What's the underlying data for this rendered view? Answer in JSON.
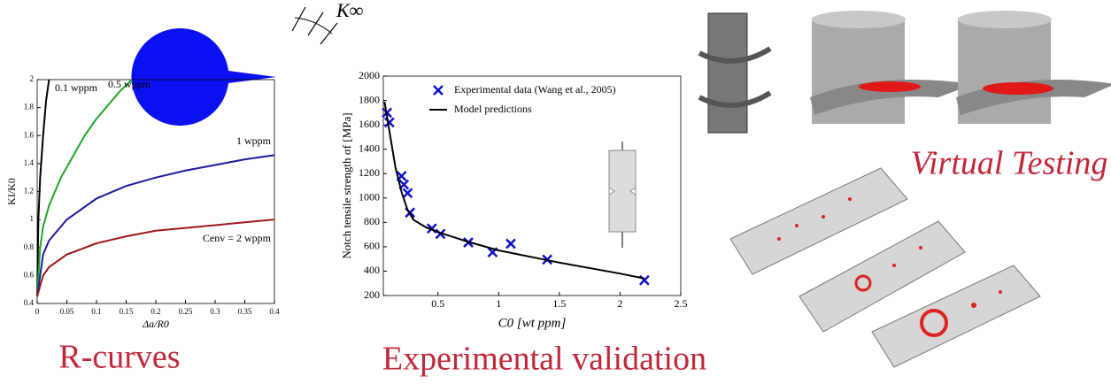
{
  "chart_data": [
    {
      "type": "line",
      "x_label": "Δa/R0",
      "y_label": "KI/K0",
      "xlim": [
        0,
        0.4
      ],
      "ylim": [
        0.4,
        2
      ],
      "xticks": [
        0,
        0.05,
        0.1,
        0.15,
        0.2,
        0.25,
        0.3,
        0.35,
        0.4
      ],
      "yticks": [
        0.4,
        0.6,
        0.8,
        1,
        1.2,
        1.4,
        1.6,
        1.8,
        2
      ],
      "series": [
        {
          "name": "0.1 wppm",
          "color": "#000000",
          "x": [
            0,
            0.002,
            0.005,
            0.01,
            0.015,
            0.02
          ],
          "values": [
            0.45,
            1.0,
            1.3,
            1.6,
            1.85,
            2
          ]
        },
        {
          "name": "0.5 wppm",
          "color": "#1fa52a",
          "x": [
            0,
            0.005,
            0.01,
            0.02,
            0.04,
            0.06,
            0.08,
            0.1,
            0.12,
            0.14,
            0.16
          ],
          "values": [
            0.45,
            0.8,
            0.95,
            1.1,
            1.3,
            1.45,
            1.6,
            1.72,
            1.82,
            1.92,
            2.0
          ]
        },
        {
          "name": "1 wppm",
          "color": "#1a1aa0",
          "x": [
            0,
            0.01,
            0.02,
            0.05,
            0.1,
            0.15,
            0.2,
            0.25,
            0.3,
            0.35,
            0.4
          ],
          "values": [
            0.45,
            0.75,
            0.85,
            1.0,
            1.15,
            1.24,
            1.3,
            1.35,
            1.39,
            1.43,
            1.46
          ]
        },
        {
          "name": "Cenv = 2 wppm",
          "color": "#a01818",
          "x": [
            0,
            0.01,
            0.02,
            0.05,
            0.1,
            0.15,
            0.2,
            0.25,
            0.3,
            0.35,
            0.4
          ],
          "values": [
            0.45,
            0.6,
            0.66,
            0.75,
            0.83,
            0.88,
            0.92,
            0.94,
            0.96,
            0.98,
            1.0
          ]
        }
      ]
    },
    {
      "type": "scatter",
      "x_label": "C0 [wt ppm]",
      "y_label": "Notch tensile strength σf [MPa]",
      "xlim": [
        0.05,
        2.5
      ],
      "ylim": [
        200,
        2000
      ],
      "xticks": [
        0.5,
        1,
        1.5,
        2,
        2.5
      ],
      "yticks": [
        200,
        400,
        600,
        800,
        1000,
        1200,
        1400,
        1600,
        1800,
        2000
      ],
      "legend": "upper left",
      "series": [
        {
          "name": "Experimental data (Wang et al., 2005)",
          "color": "#1010c8",
          "style": "markers",
          "x": [
            0.08,
            0.1,
            0.2,
            0.22,
            0.25,
            0.27,
            0.45,
            0.52,
            0.75,
            0.95,
            1.1,
            1.4,
            2.2
          ],
          "values": [
            1700,
            1620,
            1180,
            1110,
            1040,
            880,
            750,
            705,
            635,
            555,
            625,
            495,
            325
          ]
        },
        {
          "name": "Model predictions",
          "color": "#000000",
          "style": "line",
          "x": [
            0.06,
            0.1,
            0.15,
            0.2,
            0.25,
            0.3,
            0.4,
            0.5,
            0.75,
            1,
            1.5,
            2,
            2.2
          ],
          "values": [
            1790,
            1550,
            1250,
            1050,
            900,
            820,
            760,
            720,
            640,
            570,
            470,
            380,
            340
          ]
        }
      ]
    }
  ],
  "illustration": {
    "load_label": "K∞"
  },
  "captions": [
    "R-curves",
    "Experimental validation",
    "Virtual Testing"
  ]
}
